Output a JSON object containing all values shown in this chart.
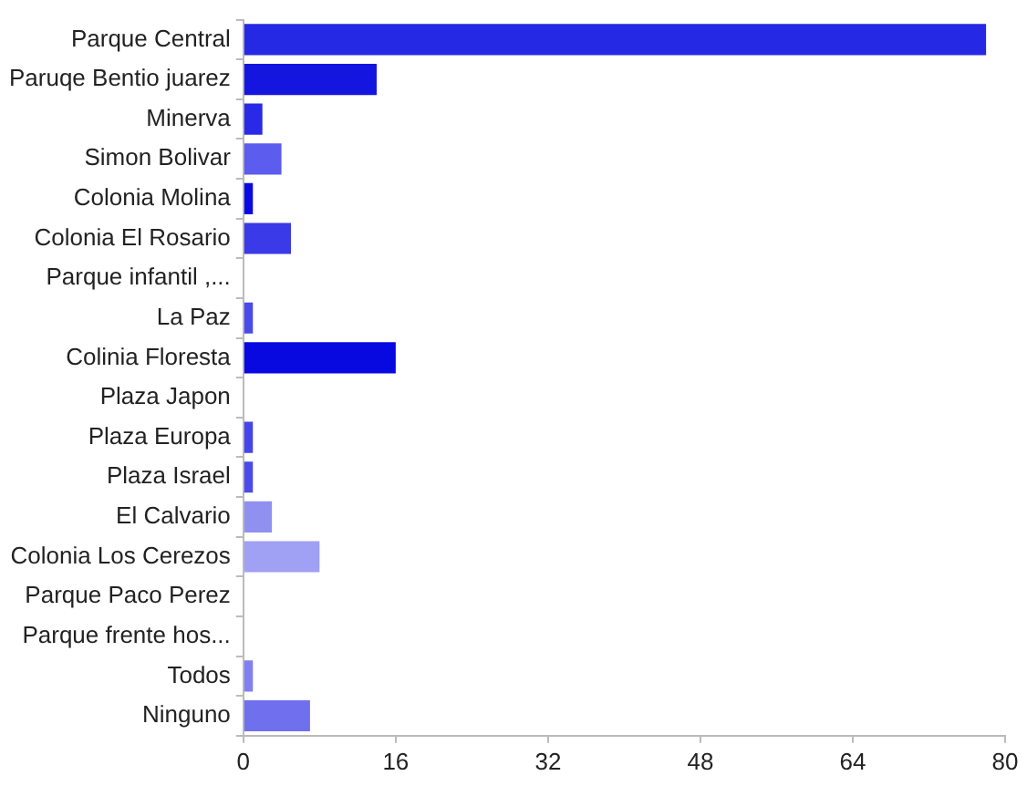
{
  "chart_data": {
    "type": "bar",
    "orientation": "horizontal",
    "categories": [
      "Parque Central",
      "Paruqe Bentio juarez",
      "Minerva",
      "Simon Bolivar",
      "Colonia Molina",
      "Colonia El Rosario",
      "Parque infantil ,...",
      "La Paz",
      "Colinia Floresta",
      "Plaza Japon",
      "Plaza Europa",
      "Plaza Israel",
      "El Calvario",
      "Colonia Los Cerezos",
      "Parque Paco Perez",
      "Parque frente hos...",
      "Todos",
      "Ninguno"
    ],
    "values": [
      78,
      14,
      2,
      4,
      1,
      5,
      0,
      1,
      16,
      0,
      1,
      1,
      3,
      8,
      0,
      0,
      1,
      7
    ],
    "colors": [
      "#2629e3",
      "#1515e0",
      "#2a2ae6",
      "#5c5cee",
      "#0a0ae0",
      "#3a3ae8",
      "#6060ee",
      "#4a4ae8",
      "#0808e0",
      "#6060ee",
      "#4545ea",
      "#4a4aea",
      "#9090f0",
      "#a0a0f4",
      "#6060ee",
      "#6060ee",
      "#8080f0",
      "#7070ee"
    ],
    "xlim": [
      0,
      80
    ],
    "xticks": [
      0,
      16,
      32,
      48,
      64,
      80
    ],
    "grid": false,
    "legend": false
  }
}
